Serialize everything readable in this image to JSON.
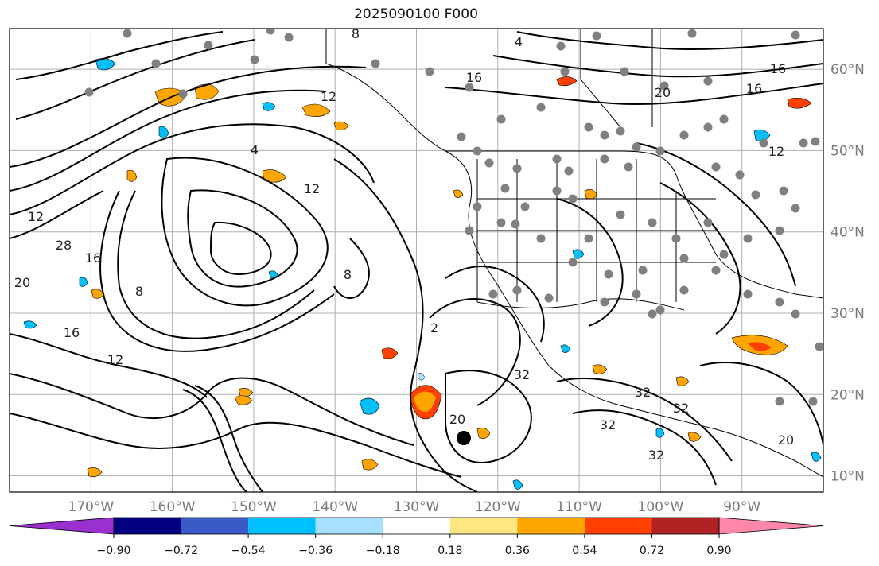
{
  "title": "2025090100 F000",
  "map": {
    "lon_range": [
      180,
      80
    ],
    "lat_range": [
      8,
      65
    ],
    "lon_labels": [
      "170°W",
      "160°W",
      "150°W",
      "140°W",
      "130°W",
      "120°W",
      "110°W",
      "100°W",
      "90°W"
    ],
    "lat_labels": [
      "60°N",
      "50°N",
      "40°N",
      "30°N",
      "20°N",
      "10°N"
    ],
    "contour_labels": [
      "8",
      "4",
      "16",
      "12",
      "16",
      "20",
      "12",
      "12",
      "28",
      "16",
      "20",
      "16",
      "12",
      "8",
      "4",
      "2",
      "32",
      "20",
      "32",
      "32",
      "32",
      "32",
      "20",
      "16",
      "12",
      "8"
    ],
    "colors": {
      "contour": "#000000",
      "grid": "#b0b0b0",
      "coast": "#000000",
      "marker": "#808080"
    }
  },
  "colorbar": {
    "ticks": [
      "−0.90",
      "−0.72",
      "−0.54",
      "−0.36",
      "−0.18",
      "0.18",
      "0.36",
      "0.54",
      "0.72",
      "0.90"
    ],
    "bins": [
      "#9b30d0",
      "#000080",
      "#3a5ac8",
      "#00bfff",
      "#a8e0ff",
      "#ffffff",
      "#ffe680",
      "#ffa500",
      "#ff4000",
      "#b22222",
      "#ff88aa"
    ]
  }
}
